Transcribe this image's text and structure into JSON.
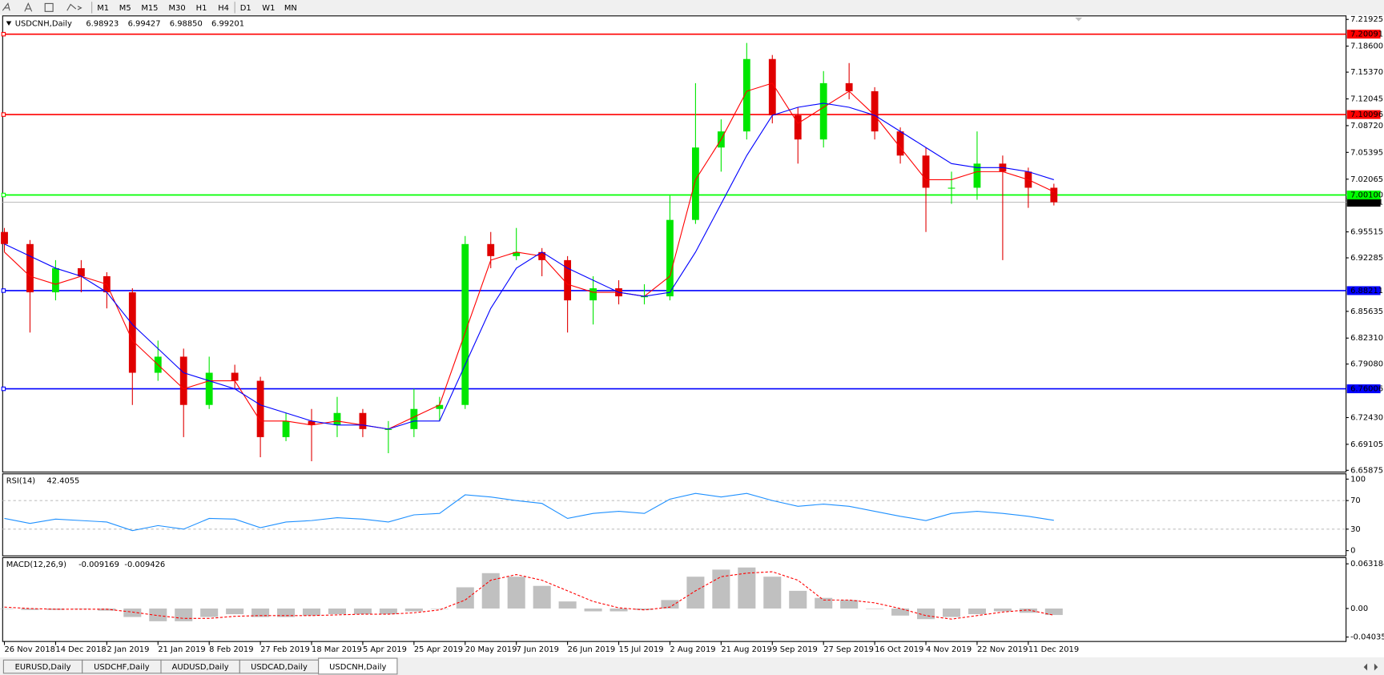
{
  "toolbar": {
    "timeframes": [
      "M1",
      "M5",
      "M15",
      "M30",
      "H1",
      "H4",
      "D1",
      "W1",
      "MN"
    ]
  },
  "tabs": [
    "EURUSD,Daily",
    "USDCHF,Daily",
    "AUDUSD,Daily",
    "USDCAD,Daily",
    "USDCNH,Daily"
  ],
  "active_tab": 4,
  "chart_data": [
    {
      "type": "candlestick",
      "title": "USDCNH,Daily",
      "quote": [
        {
          "value": 6.98923,
          "label": "6.98923"
        },
        {
          "value": 6.99427,
          "label": "6.99427"
        },
        {
          "value": 6.9885,
          "label": "6.98850"
        },
        {
          "value": 6.99201,
          "label": "6.99201"
        }
      ],
      "categories": [
        "26 Nov 2018",
        null,
        "14 Dec 2018",
        null,
        "2 Jan 2019",
        null,
        "21 Jan 2019",
        null,
        "8 Feb 2019",
        null,
        "27 Feb 2019",
        null,
        "18 Mar 2019",
        null,
        "5 Apr 2019",
        null,
        "25 Apr 2019",
        null,
        "20 May 2019",
        null,
        "7 Jun 2019",
        null,
        "26 Jun 2019",
        null,
        "15 Jul 2019",
        null,
        "2 Aug 2019",
        null,
        "21 Aug 2019",
        null,
        "9 Sep 2019",
        null,
        "27 Sep 2019",
        null,
        "16 Oct 2019",
        null,
        "4 Nov 2019",
        null,
        "22 Nov 2019",
        null,
        "11 Dec 2019",
        null
      ],
      "open": [
        6.955,
        6.94,
        6.88,
        6.91,
        6.9,
        6.88,
        6.78,
        6.8,
        6.74,
        6.78,
        6.77,
        6.7,
        6.72,
        6.715,
        6.73,
        6.71,
        6.71,
        6.735,
        6.74,
        6.94,
        6.925,
        6.93,
        6.92,
        6.87,
        6.885,
        6.875,
        6.875,
        6.97,
        7.06,
        7.08,
        7.17,
        7.1,
        7.07,
        7.14,
        7.13,
        7.08,
        7.05,
        7.01,
        7.01,
        7.04,
        7.03,
        7.01
      ],
      "high": [
        6.96,
        6.945,
        6.92,
        6.92,
        6.905,
        6.885,
        6.82,
        6.81,
        6.8,
        6.79,
        6.775,
        6.73,
        6.735,
        6.75,
        6.735,
        6.72,
        6.76,
        6.75,
        6.95,
        6.955,
        6.96,
        6.935,
        6.925,
        6.9,
        6.895,
        6.89,
        7.0,
        7.14,
        7.095,
        7.19,
        7.175,
        7.11,
        7.155,
        7.165,
        7.135,
        7.085,
        7.06,
        7.03,
        7.08,
        7.05,
        7.035,
        7.015
      ],
      "low": [
        6.93,
        6.83,
        6.87,
        6.88,
        6.86,
        6.74,
        6.77,
        6.7,
        6.735,
        6.76,
        6.675,
        6.695,
        6.67,
        6.7,
        6.7,
        6.68,
        6.7,
        6.72,
        6.735,
        6.91,
        6.92,
        6.9,
        6.83,
        6.84,
        6.865,
        6.865,
        6.87,
        6.965,
        7.03,
        7.07,
        7.09,
        7.04,
        7.06,
        7.12,
        7.07,
        7.04,
        6.955,
        6.99,
        6.995,
        6.92,
        6.985,
        6.988
      ],
      "close": [
        6.94,
        6.88,
        6.91,
        6.9,
        6.88,
        6.78,
        6.8,
        6.74,
        6.78,
        6.77,
        6.7,
        6.72,
        6.715,
        6.73,
        6.71,
        6.71,
        6.735,
        6.74,
        6.94,
        6.925,
        6.93,
        6.92,
        6.87,
        6.885,
        6.875,
        6.875,
        6.97,
        7.06,
        7.08,
        7.17,
        7.1,
        7.07,
        7.14,
        7.13,
        7.08,
        7.05,
        7.01,
        7.01,
        7.04,
        7.03,
        7.01,
        6.992
      ],
      "up_color": "#00e600",
      "down_color": "#e00000",
      "overlays": [
        {
          "color": "#ff0000",
          "values": [
            6.93,
            6.9,
            6.89,
            6.9,
            6.89,
            6.82,
            6.79,
            6.76,
            6.77,
            6.77,
            6.72,
            6.72,
            6.715,
            6.72,
            6.715,
            6.71,
            6.725,
            6.74,
            6.83,
            6.92,
            6.93,
            6.925,
            6.89,
            6.88,
            6.88,
            6.875,
            6.9,
            7.02,
            7.07,
            7.13,
            7.14,
            7.09,
            7.11,
            7.13,
            7.1,
            7.06,
            7.02,
            7.02,
            7.03,
            7.03,
            7.02,
            7.005
          ]
        },
        {
          "color": "#0000ff",
          "values": [
            6.94,
            6.925,
            6.91,
            6.9,
            6.88,
            6.84,
            6.81,
            6.78,
            6.77,
            6.76,
            6.74,
            6.73,
            6.72,
            6.715,
            6.715,
            6.71,
            6.72,
            6.72,
            6.79,
            6.86,
            6.91,
            6.93,
            6.91,
            6.895,
            6.88,
            6.875,
            6.88,
            6.93,
            6.99,
            7.05,
            7.1,
            7.11,
            7.115,
            7.11,
            7.1,
            7.08,
            7.06,
            7.04,
            7.035,
            7.035,
            7.03,
            7.02
          ]
        }
      ],
      "levels": [
        {
          "value": 7.20091,
          "color": "#ff0000"
        },
        {
          "value": 7.10096,
          "color": "#ff0000"
        },
        {
          "value": 7.001,
          "label": "7.00100",
          "color": "#00ff00"
        },
        {
          "value": 6.88211,
          "color": "#0000ff"
        },
        {
          "value": 6.76006,
          "color": "#0000ff"
        }
      ],
      "current_price": {
        "value": 6.99201,
        "color": "#c0c0c0"
      },
      "ylim": [
        6.65875,
        7.21925
      ],
      "yticks": [
        7.21925,
        {
          "value": 7.186,
          "label": "7.18600"
        },
        {
          "value": 7.1537,
          "label": "7.15370"
        },
        7.12045,
        {
          "value": 7.0872,
          "label": "7.08720"
        },
        7.05395,
        7.02065,
        6.95515,
        6.92285,
        6.85635,
        {
          "value": 6.8231,
          "label": "6.82310"
        },
        {
          "value": 6.7908,
          "label": "6.79080"
        },
        {
          "value": 6.7243,
          "label": "6.72430"
        },
        6.69105,
        6.65875
      ]
    },
    {
      "type": "line",
      "title": "RSI(14)",
      "color": "#1e90ff",
      "values": [
        45,
        38,
        44,
        42,
        40,
        28,
        35,
        30,
        45,
        44,
        32,
        40,
        42,
        46,
        44,
        40,
        50,
        52,
        78,
        75,
        70,
        66,
        45,
        52,
        55,
        52,
        72,
        80,
        75,
        80,
        70,
        62,
        65,
        62,
        55,
        48,
        42,
        52,
        55,
        52,
        48,
        42.4055
      ],
      "levels": [
        70,
        30
      ],
      "ylim": [
        0,
        100
      ],
      "yticks": [
        100,
        70,
        30,
        0
      ]
    },
    {
      "type": "macd",
      "title": "MACD(12,26,9)",
      "histogram_color": "#c0c0c0",
      "signal_color": "#ff0000",
      "histogram": [
        0.0,
        -0.002,
        -0.002,
        0.0,
        -0.003,
        -0.012,
        -0.018,
        -0.018,
        -0.012,
        -0.008,
        -0.012,
        -0.012,
        -0.01,
        -0.008,
        -0.008,
        -0.008,
        -0.004,
        0.0,
        0.03,
        0.05,
        0.045,
        0.032,
        0.01,
        -0.004,
        -0.004,
        -0.002,
        0.012,
        0.045,
        0.055,
        0.058,
        0.045,
        0.025,
        0.015,
        0.012,
        0.0,
        -0.01,
        -0.015,
        -0.012,
        -0.008,
        -0.004,
        -0.006,
        -0.009169
      ],
      "signal": [
        0.002,
        0.0,
        -0.001,
        -0.001,
        -0.001,
        -0.005,
        -0.01,
        -0.014,
        -0.014,
        -0.011,
        -0.01,
        -0.01,
        -0.01,
        -0.009,
        -0.008,
        -0.008,
        -0.006,
        -0.002,
        0.012,
        0.04,
        0.048,
        0.04,
        0.025,
        0.01,
        0.001,
        -0.002,
        0.002,
        0.025,
        0.045,
        0.05,
        0.052,
        0.04,
        0.012,
        0.012,
        0.008,
        0.0,
        -0.01,
        -0.015,
        -0.01,
        -0.005,
        -0.002,
        -0.009426
      ],
      "ylim": [
        -0.040355,
        0.063184
      ],
      "yticks": [
        0.063184,
        {
          "value": 0,
          "label": "0.00"
        },
        -0.040355
      ]
    }
  ]
}
